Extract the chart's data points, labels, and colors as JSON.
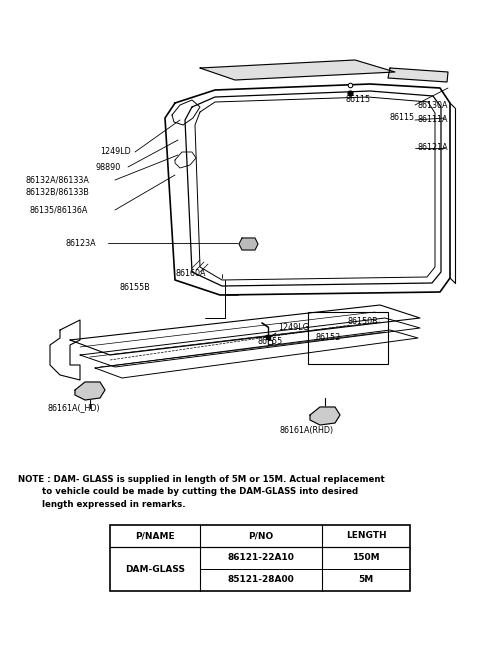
{
  "bg_color": "#ffffff",
  "fig_width": 4.8,
  "fig_height": 6.57,
  "dpi": 100,
  "note_line1": "NOTE : DAM- GLASS is supplied in length of 5M or 15M. Actual replacement",
  "note_line2": "        to vehicle could be made by cutting the DAM-GLASS into desired",
  "note_line3": "        length expressed in remarks.",
  "table_headers": [
    "P/NAME",
    "P/NO",
    "LENGTH"
  ],
  "table_row1": [
    "DAM-GLASS",
    "86121-22A10",
    "150M"
  ],
  "table_row2": [
    "",
    "85121-28A00",
    "5M"
  ]
}
